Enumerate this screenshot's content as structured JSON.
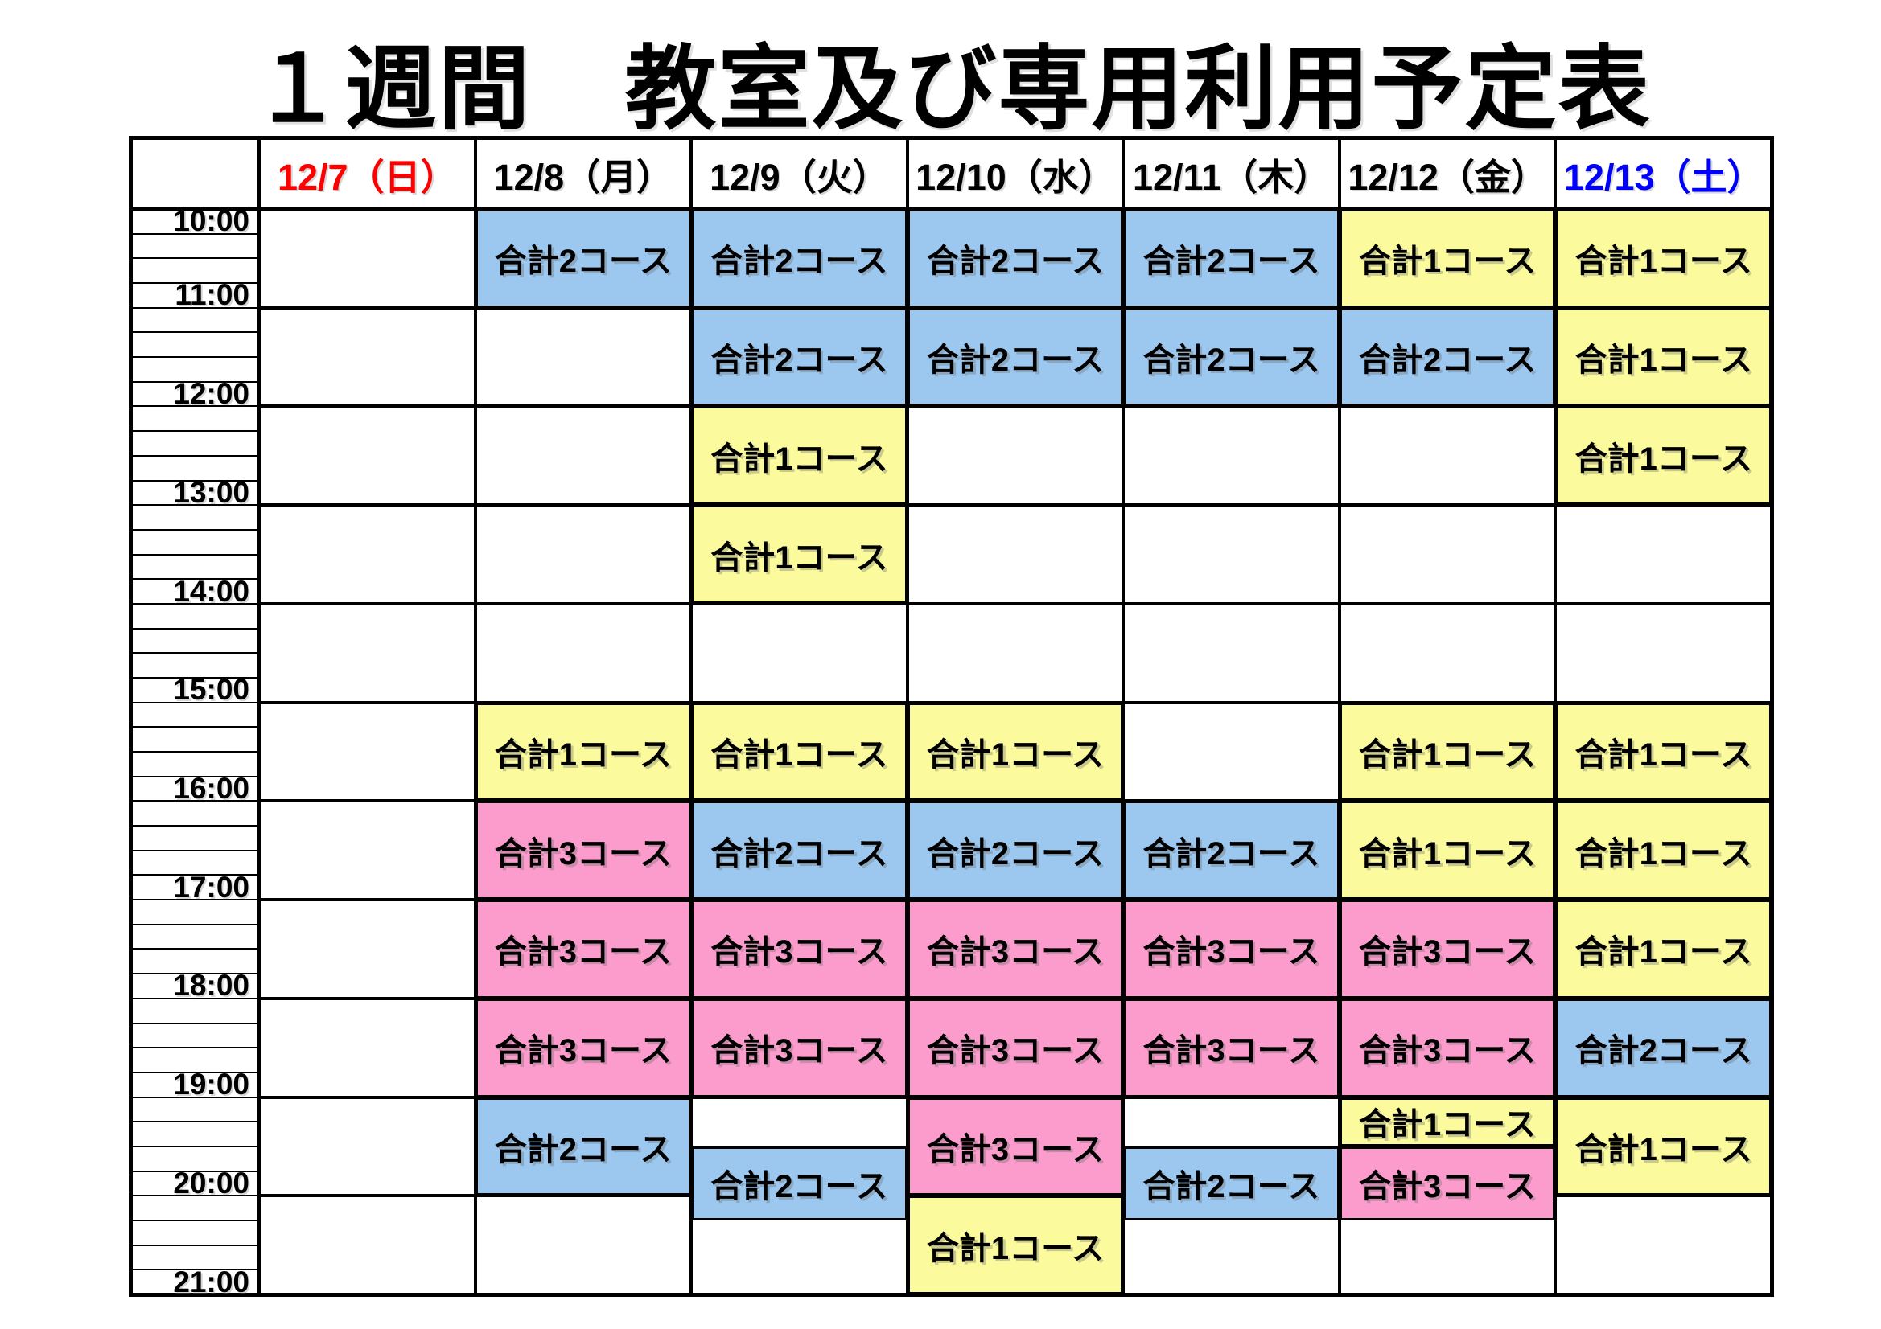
{
  "title": "１週間　教室及び専用利用予定表",
  "table": {
    "day_headers": [
      {
        "label": "12/7（日）",
        "text_color": "#FF0000"
      },
      {
        "label": "12/8（月）",
        "text_color": "#000000"
      },
      {
        "label": "12/9（火）",
        "text_color": "#000000"
      },
      {
        "label": "12/10（水）",
        "text_color": "#000000"
      },
      {
        "label": "12/11（木）",
        "text_color": "#000000"
      },
      {
        "label": "12/12（金）",
        "text_color": "#000000"
      },
      {
        "label": "12/13（土）",
        "text_color": "#0000FF"
      }
    ],
    "time_labels": [
      "10:00",
      "11:00",
      "12:00",
      "13:00",
      "14:00",
      "15:00",
      "16:00",
      "17:00",
      "18:00",
      "19:00",
      "20:00",
      "21:00"
    ],
    "course_labels": {
      "1": "合計1コース",
      "2": "合計2コース",
      "3": "合計3コース"
    },
    "course_colors": {
      "1": "#FBFA9D",
      "2": "#9CC8F0",
      "3": "#FC9CCD"
    },
    "events": [
      {
        "day_index": 1,
        "start": "10:00",
        "end": "11:00",
        "courses": 2
      },
      {
        "day_index": 1,
        "start": "15:00",
        "end": "16:00",
        "courses": 1
      },
      {
        "day_index": 1,
        "start": "16:00",
        "end": "17:00",
        "courses": 3
      },
      {
        "day_index": 1,
        "start": "17:00",
        "end": "18:00",
        "courses": 3
      },
      {
        "day_index": 1,
        "start": "18:00",
        "end": "19:00",
        "courses": 3
      },
      {
        "day_index": 1,
        "start": "19:00",
        "end": "20:00",
        "courses": 2
      },
      {
        "day_index": 2,
        "start": "10:00",
        "end": "11:00",
        "courses": 2
      },
      {
        "day_index": 2,
        "start": "11:00",
        "end": "12:00",
        "courses": 2
      },
      {
        "day_index": 2,
        "start": "12:00",
        "end": "13:00",
        "courses": 1
      },
      {
        "day_index": 2,
        "start": "13:00",
        "end": "14:00",
        "courses": 1
      },
      {
        "day_index": 2,
        "start": "15:00",
        "end": "16:00",
        "courses": 1
      },
      {
        "day_index": 2,
        "start": "16:00",
        "end": "17:00",
        "courses": 2
      },
      {
        "day_index": 2,
        "start": "17:00",
        "end": "18:00",
        "courses": 3
      },
      {
        "day_index": 2,
        "start": "18:00",
        "end": "19:00",
        "courses": 3
      },
      {
        "day_index": 2,
        "start": "19:30",
        "end": "20:15",
        "courses": 2
      },
      {
        "day_index": 3,
        "start": "10:00",
        "end": "11:00",
        "courses": 2
      },
      {
        "day_index": 3,
        "start": "11:00",
        "end": "12:00",
        "courses": 2
      },
      {
        "day_index": 3,
        "start": "15:00",
        "end": "16:00",
        "courses": 1
      },
      {
        "day_index": 3,
        "start": "16:00",
        "end": "17:00",
        "courses": 2
      },
      {
        "day_index": 3,
        "start": "17:00",
        "end": "18:00",
        "courses": 3
      },
      {
        "day_index": 3,
        "start": "18:00",
        "end": "19:00",
        "courses": 3
      },
      {
        "day_index": 3,
        "start": "19:00",
        "end": "20:00",
        "courses": 3
      },
      {
        "day_index": 3,
        "start": "20:00",
        "end": "21:00",
        "courses": 1
      },
      {
        "day_index": 4,
        "start": "10:00",
        "end": "11:00",
        "courses": 2
      },
      {
        "day_index": 4,
        "start": "11:00",
        "end": "12:00",
        "courses": 2
      },
      {
        "day_index": 4,
        "start": "16:00",
        "end": "17:00",
        "courses": 2
      },
      {
        "day_index": 4,
        "start": "17:00",
        "end": "18:00",
        "courses": 3
      },
      {
        "day_index": 4,
        "start": "18:00",
        "end": "19:00",
        "courses": 3
      },
      {
        "day_index": 4,
        "start": "19:30",
        "end": "20:15",
        "courses": 2
      },
      {
        "day_index": 5,
        "start": "10:00",
        "end": "11:00",
        "courses": 1
      },
      {
        "day_index": 5,
        "start": "11:00",
        "end": "12:00",
        "courses": 2
      },
      {
        "day_index": 5,
        "start": "15:00",
        "end": "16:00",
        "courses": 1
      },
      {
        "day_index": 5,
        "start": "16:00",
        "end": "17:00",
        "courses": 1
      },
      {
        "day_index": 5,
        "start": "17:00",
        "end": "18:00",
        "courses": 3
      },
      {
        "day_index": 5,
        "start": "18:00",
        "end": "19:00",
        "courses": 3
      },
      {
        "day_index": 5,
        "start": "19:00",
        "end": "19:30",
        "courses": 1
      },
      {
        "day_index": 5,
        "start": "19:30",
        "end": "20:15",
        "courses": 3
      },
      {
        "day_index": 6,
        "start": "10:00",
        "end": "11:00",
        "courses": 1
      },
      {
        "day_index": 6,
        "start": "11:00",
        "end": "12:00",
        "courses": 1
      },
      {
        "day_index": 6,
        "start": "12:00",
        "end": "13:00",
        "courses": 1
      },
      {
        "day_index": 6,
        "start": "15:00",
        "end": "16:00",
        "courses": 1
      },
      {
        "day_index": 6,
        "start": "16:00",
        "end": "17:00",
        "courses": 1
      },
      {
        "day_index": 6,
        "start": "17:00",
        "end": "18:00",
        "courses": 1
      },
      {
        "day_index": 6,
        "start": "18:00",
        "end": "19:00",
        "courses": 2
      },
      {
        "day_index": 6,
        "start": "19:00",
        "end": "20:00",
        "courses": 1
      }
    ]
  }
}
